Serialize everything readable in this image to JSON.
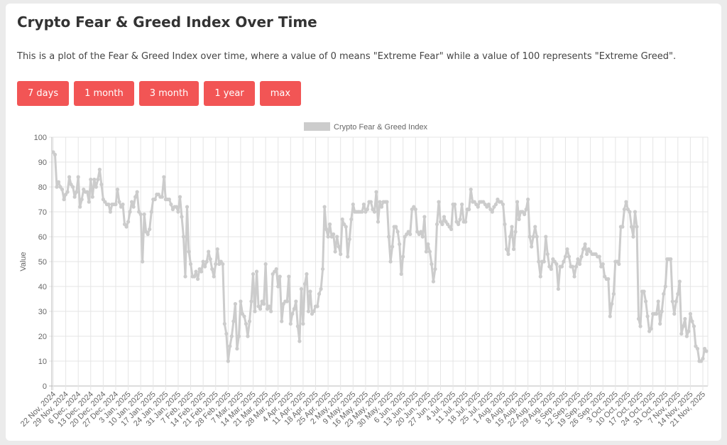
{
  "header": {
    "title": "Crypto Fear & Greed Index Over Time",
    "description": "This is a plot of the Fear & Greed Index over time, where a value of 0 means \"Extreme Fear\" while a value of 100 represents \"Extreme Greed\"."
  },
  "buttons": [
    {
      "label": "7 days"
    },
    {
      "label": "1 month"
    },
    {
      "label": "3 month"
    },
    {
      "label": "1 year"
    },
    {
      "label": "max"
    }
  ],
  "colors": {
    "button": "#f25555",
    "line": "#cccccc",
    "grid": "#e5e5e5"
  },
  "chart_data": {
    "type": "line",
    "title": "",
    "legend": {
      "label": "Crypto Fear & Greed Index",
      "position": "top"
    },
    "xlabel": "",
    "ylabel": "Value",
    "ylim": [
      0,
      100
    ],
    "y_ticks": [
      0,
      10,
      20,
      30,
      40,
      50,
      60,
      70,
      80,
      90,
      100
    ],
    "start_date": "22 Nov, 2024",
    "x_tick_interval_days": 7,
    "x_tick_labels": [
      "22 Nov, 2024",
      "29 Nov, 2024",
      "6 Dec, 2024",
      "13 Dec, 2024",
      "20 Dec, 2024",
      "27 Dec, 2024",
      "3 Jan, 2025",
      "10 Jan, 2025",
      "17 Jan, 2025",
      "24 Jan, 2025",
      "31 Jan, 2025",
      "7 Feb, 2025",
      "14 Feb, 2025",
      "21 Feb, 2025",
      "28 Feb, 2025",
      "7 Mar, 2025",
      "14 Mar, 2025",
      "21 Mar, 2025",
      "28 Mar, 2025",
      "4 Apr, 2025",
      "11 Apr, 2025",
      "18 Apr, 2025",
      "25 Apr, 2025",
      "2 May, 2025",
      "9 May, 2025",
      "16 May, 2025",
      "23 May, 2025",
      "30 May, 2025",
      "6 Jun, 2025",
      "13 Jun, 2025",
      "20 Jun, 2025",
      "27 Jun, 2025",
      "4 Jul, 2025",
      "11 Jul, 2025",
      "18 Jul, 2025",
      "25 Jul, 2025",
      "1 Aug, 2025",
      "8 Aug, 2025",
      "15 Aug, 2025",
      "22 Aug, 2025",
      "29 Aug, 2025",
      "5 Sep, 2025",
      "12 Sep, 2025",
      "19 Sep, 2025",
      "26 Sep, 2025",
      "3 Oct, 2025",
      "10 Oct, 2025",
      "17 Oct, 2025",
      "24 Oct, 2025",
      "31 Oct, 2025",
      "7 Nov, 2025",
      "14 Nov, 2025",
      "21 Nov, 2025"
    ],
    "values": [
      94,
      93,
      80,
      82,
      80,
      79,
      75,
      77,
      78,
      84,
      81,
      80,
      76,
      78,
      84,
      72,
      75,
      79,
      78,
      78,
      74,
      83,
      76,
      83,
      80,
      83,
      87,
      81,
      75,
      74,
      73,
      73,
      70,
      73,
      73,
      73,
      79,
      74,
      72,
      73,
      65,
      64,
      66,
      70,
      74,
      72,
      76,
      78,
      70,
      69,
      50,
      69,
      62,
      61,
      63,
      70,
      75,
      75,
      77,
      77,
      76,
      76,
      84,
      75,
      75,
      75,
      73,
      71,
      72,
      72,
      70,
      76,
      68,
      60,
      44,
      72,
      54,
      49,
      44,
      44,
      46,
      43,
      47,
      46,
      50,
      48,
      50,
      54,
      51,
      47,
      44,
      49,
      55,
      49,
      50,
      49,
      25,
      21,
      10,
      16,
      20,
      26,
      33,
      15,
      20,
      34,
      29,
      28,
      25,
      20,
      26,
      34,
      45,
      30,
      46,
      32,
      31,
      34,
      33,
      49,
      31,
      32,
      30,
      45,
      46,
      47,
      40,
      44,
      26,
      33,
      34,
      34,
      44,
      25,
      29,
      31,
      34,
      24,
      18,
      39,
      25,
      41,
      45,
      30,
      38,
      29,
      30,
      32,
      32,
      37,
      39,
      47,
      72,
      63,
      60,
      65,
      60,
      61,
      54,
      60,
      56,
      53,
      67,
      65,
      64,
      52,
      59,
      67,
      73,
      70,
      70,
      70,
      70,
      70,
      73,
      70,
      71,
      74,
      74,
      71,
      70,
      78,
      66,
      74,
      72,
      74,
      74,
      74,
      60,
      50,
      56,
      64,
      64,
      62,
      57,
      45,
      52,
      60,
      61,
      62,
      61,
      71,
      72,
      71,
      62,
      61,
      62,
      60,
      68,
      54,
      57,
      54,
      49,
      42,
      47,
      65,
      74,
      66,
      65,
      68,
      66,
      65,
      64,
      63,
      73,
      73,
      66,
      65,
      67,
      73,
      66,
      66,
      71,
      71,
      79,
      74,
      74,
      73,
      72,
      74,
      74,
      74,
      73,
      72,
      73,
      71,
      70,
      72,
      73,
      75,
      74,
      74,
      73,
      65,
      55,
      53,
      60,
      64,
      55,
      62,
      74,
      67,
      70,
      70,
      69,
      71,
      75,
      60,
      56,
      60,
      64,
      60,
      50,
      44,
      50,
      50,
      60,
      53,
      48,
      47,
      51,
      50,
      49,
      39,
      48,
      48,
      50,
      52,
      55,
      52,
      48,
      48,
      44,
      48,
      51,
      49,
      52,
      55,
      57,
      53,
      55,
      54,
      53,
      53,
      53,
      52,
      52,
      48,
      49,
      44,
      43,
      43,
      28,
      33,
      37,
      50,
      50,
      49,
      64,
      64,
      71,
      74,
      71,
      70,
      64,
      60,
      70,
      64,
      27,
      24,
      38,
      38,
      34,
      28,
      22,
      23,
      29,
      29,
      29,
      34,
      25,
      30,
      37,
      40,
      51,
      51,
      51,
      34,
      29,
      34,
      37,
      42,
      21,
      24,
      27,
      20,
      22,
      29,
      26,
      24,
      16,
      15,
      10,
      10,
      11,
      15,
      14
    ],
    "grid": true
  }
}
